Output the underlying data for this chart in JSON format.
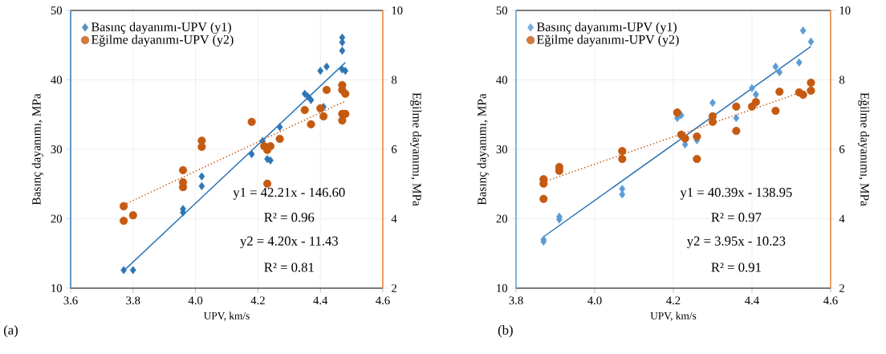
{
  "chart_data": [
    {
      "type": "scatter",
      "xlabel": "UPV, km/s",
      "ylabel": "Basınç dayanımı,  MPa",
      "y2label": "Eğilme dayanımı,  MPa",
      "xlim": [
        3.6,
        4.6
      ],
      "xticks": [
        3.6,
        3.8,
        {
          "value": 4,
          "label": "4.0"
        },
        4.2,
        4.4,
        4.6
      ],
      "ylim": [
        10,
        50
      ],
      "yticks": [
        10,
        20,
        30,
        40,
        50
      ],
      "y2lim": [
        2,
        10
      ],
      "y2ticks": [
        2,
        4,
        6,
        8,
        10
      ],
      "grid": true,
      "legend": "top left",
      "annotations": [
        "y1 = 42.21x - 146.60",
        "R² = 0.96",
        "y2 = 4.20x - 11.43",
        "R² = 0.81",
        "(a)"
      ],
      "series": [
        {
          "name": "Basınç dayanımı-UPV (y1)",
          "color": "#2e75b6",
          "marker": "diamond",
          "x": [
            3.77,
            3.8,
            3.96,
            3.96,
            4.02,
            4.02,
            4.18,
            4.23,
            4.24,
            4.27,
            4.215,
            4.36,
            4.35,
            4.37,
            4.41,
            4.4,
            4.42,
            4.47,
            4.48,
            4.47,
            4.47,
            4.47
          ],
          "values": [
            12.6,
            12.6,
            21.4,
            20.9,
            26.1,
            24.7,
            29.3,
            28.6,
            28.4,
            33.2,
            31.2,
            37.6,
            38.0,
            37.1,
            36.1,
            41.3,
            41.9,
            41.5,
            41.3,
            46.1,
            45.4,
            44.2
          ]
        },
        {
          "name": "Eğilme dayanımı-UPV (y2)",
          "color": "#c55a11",
          "marker": "circle",
          "axis": "y2",
          "x": [
            3.77,
            3.77,
            3.8,
            3.96,
            3.96,
            3.96,
            4.02,
            4.02,
            4.23,
            4.18,
            4.22,
            4.23,
            4.24,
            4.27,
            4.35,
            4.37,
            4.4,
            4.41,
            4.42,
            4.47,
            4.47,
            4.48,
            4.47,
            4.48,
            4.47
          ],
          "values": [
            4.36,
            3.94,
            4.1,
            5.4,
            5.05,
            4.91,
            6.07,
            6.25,
            5.01,
            6.79,
            6.09,
            5.98,
            6.09,
            6.3,
            7.13,
            6.72,
            7.18,
            6.95,
            7.71,
            7.85,
            7.71,
            7.6,
            7.02,
            7.02,
            6.83
          ]
        },
        {
          "type": "line",
          "color": "#2e75b6",
          "marker": "none",
          "line_style": "solid",
          "x": [
            3.77,
            4.48
          ],
          "values": [
            12.5,
            42.5
          ]
        },
        {
          "type": "line",
          "color": "#c55a11",
          "marker": "none",
          "line_style": "dotted",
          "axis": "y2",
          "x": [
            3.77,
            4.48
          ],
          "values": [
            4.4,
            7.39
          ]
        }
      ]
    },
    {
      "type": "scatter",
      "xlabel": "UPV, km/s",
      "ylabel": "Basınç dayanımı,  MPa",
      "y2label": "Eğilme dayanımı,  MPa",
      "xlim": [
        3.8,
        4.6
      ],
      "xticks": [
        3.8,
        {
          "value": 4,
          "label": "4.0"
        },
        4.2,
        4.4,
        4.6
      ],
      "ylim": [
        10,
        50
      ],
      "yticks": [
        10,
        20,
        30,
        40,
        50
      ],
      "y2lim": [
        2,
        10
      ],
      "y2ticks": [
        2,
        4,
        6,
        8,
        10
      ],
      "grid": true,
      "legend": "top left",
      "annotations": [
        "y1 = 40.39x - 138.95",
        "R² = 0.97",
        "y2 = 3.95x - 10.23",
        "R² = 0.91",
        "(b)"
      ],
      "series": [
        {
          "name": "Basınç dayanımı-UPV (y1)",
          "color": "#5b9bd5",
          "marker": "diamond",
          "x": [
            3.87,
            3.87,
            3.91,
            3.91,
            4.07,
            4.07,
            4.21,
            4.22,
            4.23,
            4.26,
            4.3,
            4.36,
            4.4,
            4.41,
            4.46,
            4.47,
            4.52,
            4.53,
            4.55
          ],
          "values": [
            16.7,
            17.0,
            20.3,
            19.9,
            24.3,
            23.5,
            34.5,
            34.9,
            30.7,
            31.3,
            36.7,
            34.5,
            38.8,
            37.9,
            41.9,
            41.1,
            42.5,
            47.1,
            45.5
          ]
        },
        {
          "name": "Eğilme dayanımı-UPV (y2)",
          "color": "#c55a11",
          "marker": "circle",
          "axis": "y2",
          "x": [
            3.87,
            3.87,
            3.87,
            3.91,
            3.91,
            4.07,
            4.07,
            4.26,
            4.21,
            4.22,
            4.23,
            4.26,
            4.3,
            4.3,
            4.36,
            4.36,
            4.4,
            4.41,
            4.46,
            4.47,
            4.52,
            4.53,
            4.55,
            4.55
          ],
          "values": [
            5.14,
            5.01,
            4.57,
            5.49,
            5.38,
            5.95,
            5.72,
            5.72,
            7.06,
            6.42,
            6.31,
            6.37,
            6.95,
            6.79,
            7.23,
            6.53,
            7.23,
            7.36,
            7.11,
            7.66,
            7.64,
            7.57,
            7.92,
            7.69
          ]
        },
        {
          "type": "line",
          "color": "#2e75b6",
          "marker": "none",
          "line_style": "solid",
          "x": [
            3.87,
            4.55
          ],
          "values": [
            17.4,
            44.8
          ]
        },
        {
          "type": "line",
          "color": "#c55a11",
          "marker": "none",
          "line_style": "dotted",
          "axis": "y2",
          "x": [
            3.87,
            4.55
          ],
          "values": [
            5.06,
            7.74
          ]
        }
      ]
    }
  ]
}
